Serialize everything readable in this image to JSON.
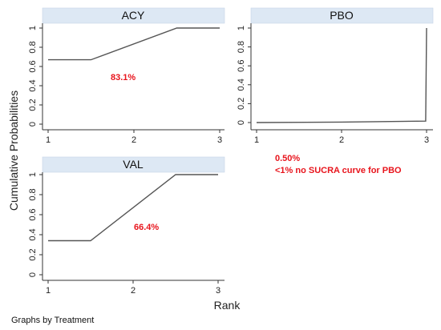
{
  "chart_data": {
    "type": "line",
    "ylabel": "Cumulative Probabilities",
    "xlabel": "Rank",
    "footer": "Graphs by Treatment",
    "x_ticks": [
      1,
      2,
      3
    ],
    "y_ticks": [
      0,
      0.2,
      0.4,
      0.6,
      0.8,
      1
    ],
    "y_tick_labels": [
      "0",
      "0.2",
      "0.4",
      "0.6",
      "0.8",
      "1"
    ],
    "xlim": [
      1,
      3
    ],
    "ylim": [
      0,
      1
    ],
    "grid": false,
    "panels": [
      {
        "title": "ACY",
        "x": [
          1,
          1.5,
          2.5,
          3
        ],
        "y": [
          0.67,
          0.67,
          1.0,
          1.0
        ],
        "annotations": [
          "83.1%"
        ]
      },
      {
        "title": "PBO",
        "x": [
          1,
          2,
          2.99,
          3
        ],
        "y": [
          0.0,
          0.005,
          0.015,
          1.0
        ],
        "annotations": [
          "0.50%",
          "<1% no SUCRA curve for PBO"
        ]
      },
      {
        "title": "VAL",
        "x": [
          1,
          1.5,
          2.5,
          3
        ],
        "y": [
          0.34,
          0.34,
          1.0,
          1.0
        ],
        "annotations": [
          "66.4%"
        ]
      }
    ],
    "colors": {
      "strip": "#dde8f4",
      "line": "#555555",
      "annotation": "#e8141c"
    }
  }
}
